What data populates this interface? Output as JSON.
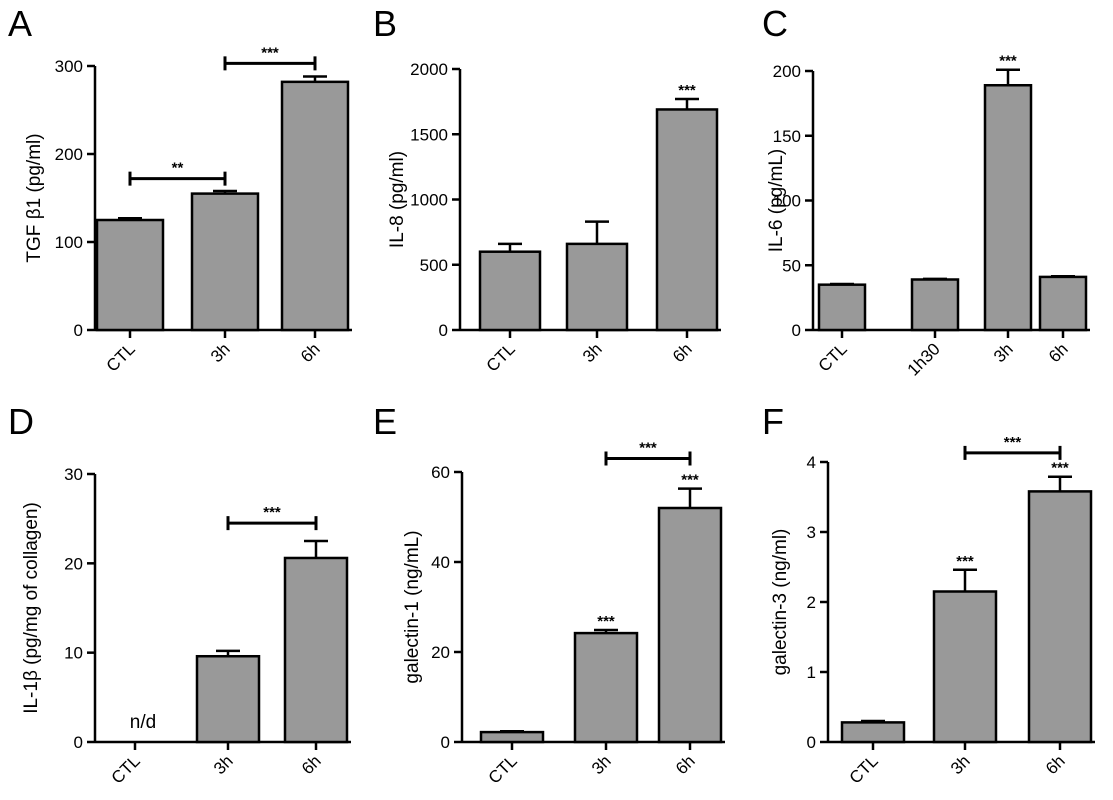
{
  "chart_data": [
    {
      "panel_label": "A",
      "type": "bar",
      "categories": [
        "CTL",
        "3h",
        "6h"
      ],
      "values": [
        125,
        155,
        282
      ],
      "errors": [
        2,
        3,
        6
      ],
      "ylabel": "TGF β1 (pg/ml)",
      "ylim": [
        0,
        300
      ],
      "yticks": [
        0,
        100,
        200,
        300
      ],
      "grid": false,
      "bar_annotations": [
        "",
        "",
        ""
      ],
      "brackets": [
        {
          "from": 0,
          "to": 1,
          "level": 172,
          "label": "**"
        },
        {
          "from": 1,
          "to": 2,
          "level": 303,
          "label": "***"
        }
      ]
    },
    {
      "panel_label": "B",
      "type": "bar",
      "categories": [
        "CTL",
        "3h",
        "6h"
      ],
      "values": [
        600,
        660,
        1690
      ],
      "errors": [
        60,
        170,
        80
      ],
      "ylabel": "IL-8 (pg/ml)",
      "ylim": [
        0,
        2000
      ],
      "yticks": [
        0,
        500,
        1000,
        1500,
        2000
      ],
      "grid": false,
      "bar_annotations": [
        "",
        "",
        "***"
      ],
      "brackets": []
    },
    {
      "panel_label": "C",
      "type": "bar",
      "categories": [
        "CTL",
        "1h30",
        "3h",
        "6h"
      ],
      "values": [
        35,
        39,
        189,
        41
      ],
      "errors": [
        0.5,
        0.5,
        12,
        0.5
      ],
      "ylabel": "IL-6 (pg/mL)",
      "ylim": [
        0,
        200
      ],
      "yticks": [
        0,
        50,
        100,
        150,
        200
      ],
      "grid": false,
      "bar_annotations": [
        "",
        "",
        "***",
        ""
      ],
      "brackets": []
    },
    {
      "panel_label": "D",
      "type": "bar",
      "categories": [
        "CTL",
        "3h",
        "6h"
      ],
      "values": [
        0,
        9.6,
        20.6
      ],
      "errors": [
        0,
        0.6,
        1.9
      ],
      "ylabel": "IL-1β (pg/mg of collagen)",
      "ylim": [
        0,
        30
      ],
      "yticks": [
        0,
        10,
        20,
        30
      ],
      "grid": false,
      "bar_annotations": [
        "n/d",
        "",
        ""
      ],
      "brackets": [
        {
          "from": 1,
          "to": 2,
          "level": 24.5,
          "label": "***"
        }
      ]
    },
    {
      "panel_label": "E",
      "type": "bar",
      "categories": [
        "CTL",
        "3h",
        "6h"
      ],
      "values": [
        2.2,
        24.2,
        52
      ],
      "errors": [
        0.2,
        0.7,
        4.3
      ],
      "ylabel": "galectin-1 (ng/mL)",
      "ylim": [
        0,
        60
      ],
      "yticks": [
        0,
        20,
        40,
        60
      ],
      "grid": false,
      "bar_annotations": [
        "",
        "***",
        "***"
      ],
      "brackets": [
        {
          "from": 1,
          "to": 2,
          "level": 63,
          "label": "***"
        }
      ]
    },
    {
      "panel_label": "F",
      "type": "bar",
      "categories": [
        "CTL",
        "3h",
        "6h"
      ],
      "values": [
        0.28,
        2.15,
        3.58
      ],
      "errors": [
        0.02,
        0.31,
        0.21
      ],
      "ylabel": "galectin-3 (ng/ml)",
      "ylim": [
        0,
        4
      ],
      "yticks": [
        0,
        1,
        2,
        3,
        4
      ],
      "grid": false,
      "bar_annotations": [
        "",
        "***",
        "***"
      ],
      "brackets": [
        {
          "from": 1,
          "to": 2,
          "level": 4.13,
          "label": "***"
        }
      ]
    }
  ],
  "colors": {
    "bar_fill": "#999999",
    "stroke": "#000000"
  }
}
